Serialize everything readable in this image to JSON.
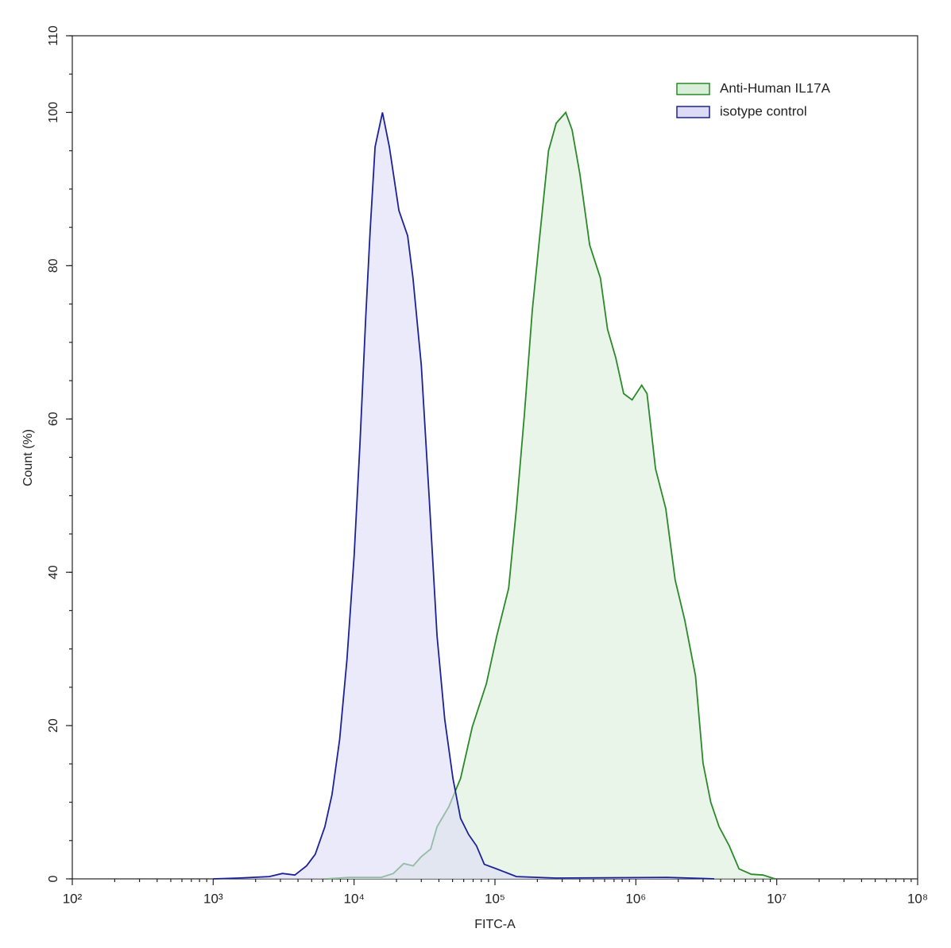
{
  "chart_data": {
    "type": "area",
    "x_label": "FITC-A",
    "y_label": "Count (%)",
    "xscale": "log",
    "xlim": [
      100,
      100000000
    ],
    "xticks": [
      {
        "value": 100,
        "label": "10²"
      },
      {
        "value": 1000,
        "label": "10³"
      },
      {
        "value": 10000,
        "label": "10⁴"
      },
      {
        "value": 100000,
        "label": "10⁵"
      },
      {
        "value": 1000000,
        "label": "10⁶"
      },
      {
        "value": 10000000,
        "label": "10⁷"
      },
      {
        "value": 100000000,
        "label": "10⁸"
      }
    ],
    "ylim": [
      0,
      110
    ],
    "yticks": [
      0,
      20,
      40,
      60,
      80,
      100,
      110
    ],
    "legend": "top-right",
    "series": [
      {
        "name": "Anti-Human IL17A",
        "color": "#2a8a2a",
        "fill": "#d8eed8",
        "x": [
          6300,
          9200,
          15600,
          19000,
          22500,
          26300,
          30000,
          35000,
          38800,
          47000,
          57000,
          69000,
          87000,
          103000,
          125000,
          142000,
          162000,
          184000,
          210000,
          240000,
          272000,
          318000,
          353000,
          400000,
          470000,
          560000,
          630000,
          720000,
          820000,
          940000,
          1100000,
          1200000,
          1380000,
          1630000,
          1900000,
          2220000,
          2650000,
          3000000,
          3400000,
          3900000,
          4600000,
          5400000,
          6600000,
          8000000,
          9700000
        ],
        "values": [
          0,
          0.2,
          0.2,
          0.7,
          2.0,
          1.7,
          2.9,
          3.9,
          6.8,
          9.4,
          13.1,
          19.8,
          25.5,
          31.7,
          37.9,
          48.3,
          60.8,
          74.2,
          84.6,
          95,
          98.6,
          100,
          97.7,
          92,
          82.7,
          78.4,
          71.7,
          68,
          63.3,
          62.5,
          64.4,
          63.3,
          53.5,
          48.3,
          39,
          33.8,
          26.5,
          15.1,
          10,
          6.8,
          4.3,
          1.3,
          0.6,
          0.5,
          0
        ]
      },
      {
        "name": "isotype control",
        "color": "#1c2296",
        "fill": "#dcdcf7",
        "x": [
          1000,
          1500,
          2500,
          3100,
          3800,
          4600,
          5300,
          6200,
          6970,
          7900,
          8900,
          10000,
          11000,
          12100,
          13000,
          14100,
          15900,
          17800,
          20800,
          24000,
          26200,
          30000,
          34200,
          38800,
          44000,
          50300,
          57000,
          65000,
          74000,
          84000,
          103000,
          142000,
          270000,
          1670000,
          3600000
        ],
        "values": [
          0,
          0.1,
          0.3,
          0.7,
          0.5,
          1.7,
          3.2,
          6.8,
          11,
          18.2,
          28.6,
          42.1,
          56.6,
          73.2,
          84.6,
          95.5,
          100,
          95.5,
          87.2,
          83.9,
          78.4,
          67,
          49.4,
          31.7,
          20.8,
          13.1,
          7.9,
          5.8,
          4.3,
          1.9,
          1.3,
          0.3,
          0.1,
          0.2,
          0
        ]
      }
    ]
  }
}
